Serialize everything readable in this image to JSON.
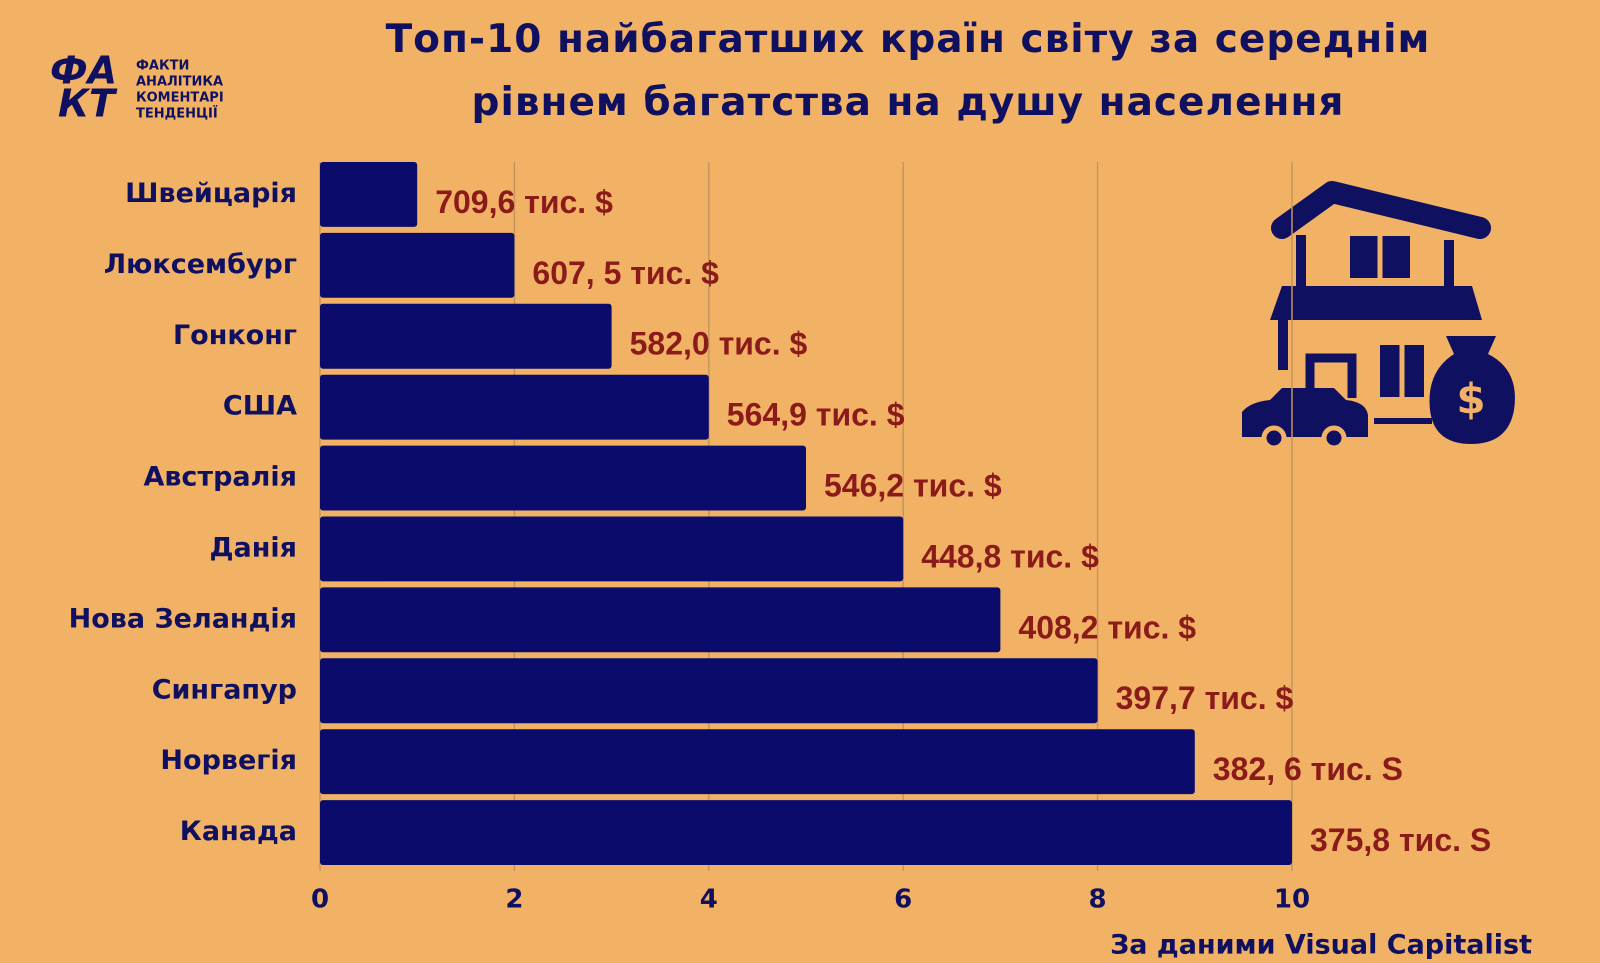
{
  "chart_data": {
    "type": "barh",
    "title": "Топ-10 найбагатших країн світу за середнім рівнем багатства на душу населення",
    "categories": [
      "Швейцарія",
      "Люксембург",
      "Гонконг",
      "США",
      "Австралія",
      "Данія",
      "Нова Зеландія",
      "Сингапур",
      "Норвегія",
      "Канада"
    ],
    "values": [
      1,
      2,
      3,
      4,
      5,
      6,
      7,
      8,
      9,
      10
    ],
    "annotations": [
      "709,6 тис. $",
      "607, 5 тис. $",
      "582,0 тис. $",
      "564,9 тис. $",
      "546,2 тис. $",
      "448,8 тис. $",
      "408,2 тис. $",
      "397,7 тис. $",
      "382, 6 тис. S",
      "375,8 тис. S"
    ],
    "color": "#0b0b6b",
    "xlim": [
      0,
      10
    ],
    "xticks": [
      0,
      2,
      4,
      6,
      8,
      10
    ],
    "grid": true,
    "source": "За даними Visual Capitalist"
  },
  "logo": {
    "mark": [
      "ФА",
      "КТ"
    ],
    "lines": [
      "ФАКТИ",
      "АНАЛІТИКА",
      "КОМЕНТАРІ",
      "ТЕНДЕНЦІЇ"
    ]
  },
  "icon_symbol": "$"
}
